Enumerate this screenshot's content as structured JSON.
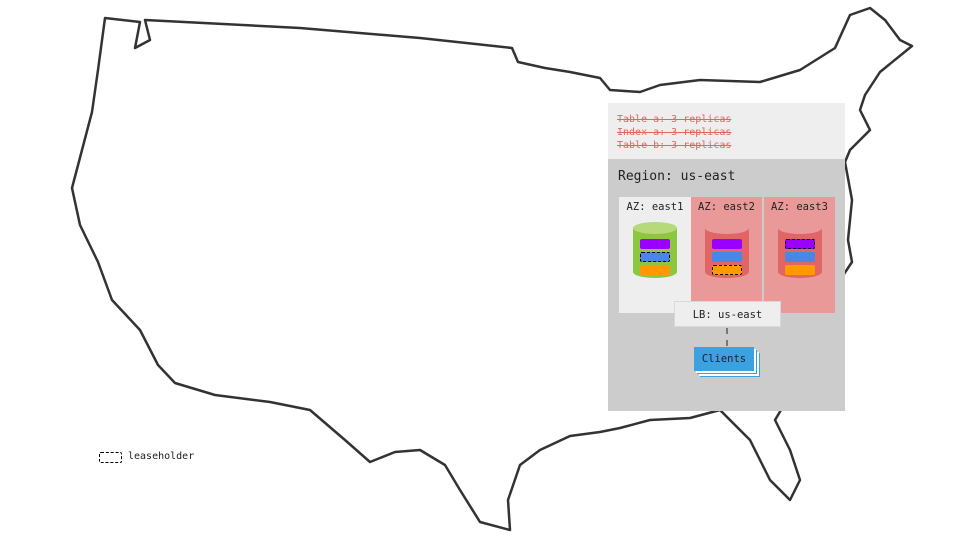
{
  "replication_notes": [
    "Table a: 3 replicas",
    "Index a: 3 replicas",
    "Table b: 3 replicas"
  ],
  "region": {
    "title": "Region: us-east"
  },
  "azs": [
    {
      "label": "AZ: east1",
      "status": "healthy",
      "db_color": "#8dc63f",
      "leaseholder_block": "blue"
    },
    {
      "label": "AZ: east2",
      "status": "failed",
      "db_color": "#e06666",
      "leaseholder_block": "orange"
    },
    {
      "label": "AZ: east3",
      "status": "failed",
      "db_color": "#e06666",
      "leaseholder_block": "purple"
    }
  ],
  "block_colors": {
    "purple": "#9900ff",
    "blue": "#4a86e8",
    "orange": "#ff9900"
  },
  "load_balancer": "LB: us-east",
  "clients": "Clients",
  "legend": {
    "leaseholder": "leaseholder"
  }
}
